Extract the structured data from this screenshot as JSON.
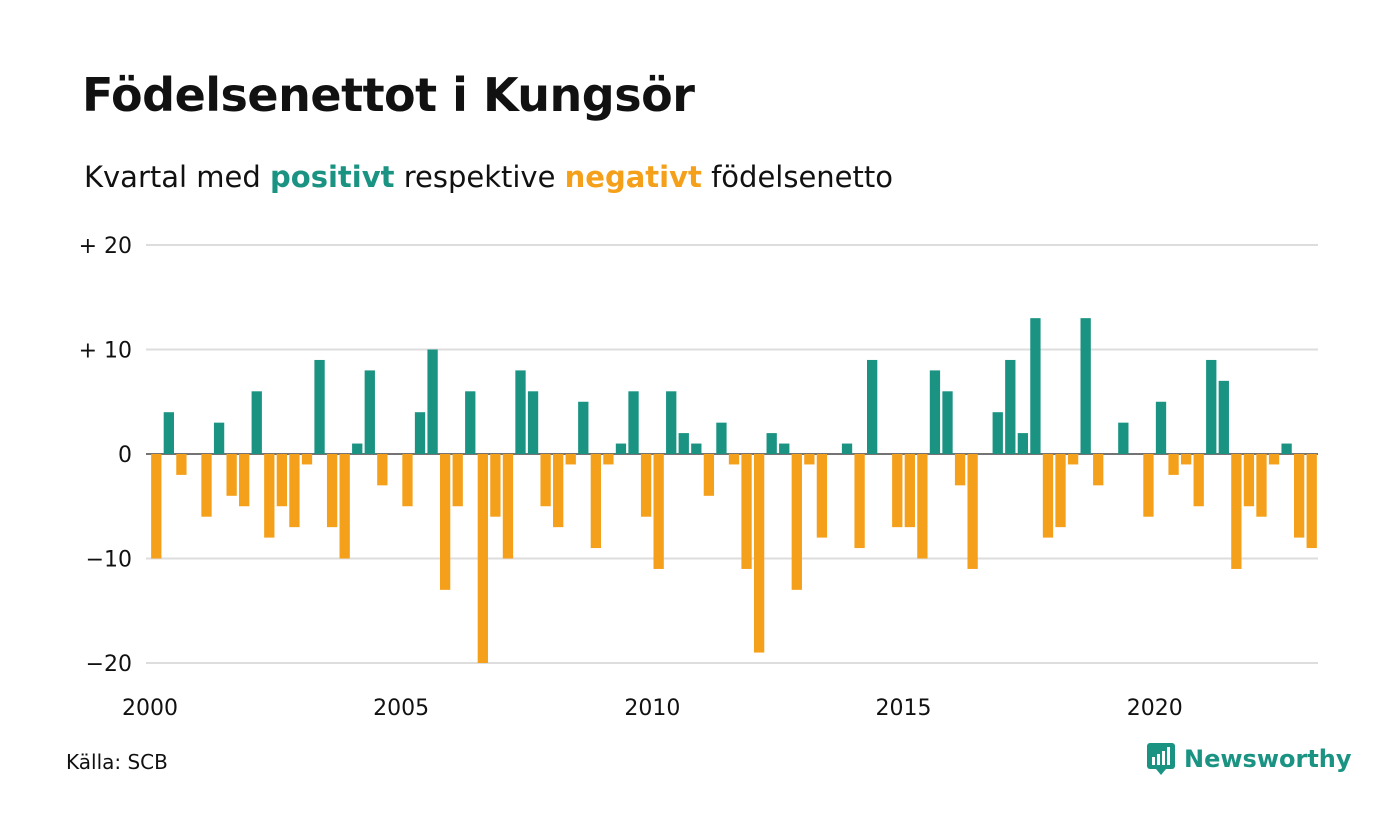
{
  "header": {
    "title": "Födelsenettot i Kungsör",
    "subtitle_prefix": "Kvartal med ",
    "subtitle_pos": "positivt",
    "subtitle_mid": " respektive ",
    "subtitle_neg": "negativt",
    "subtitle_suffix": " födelsenetto"
  },
  "footer": {
    "source": "Källa: SCB",
    "brand": "Newsworthy"
  },
  "colors": {
    "positive": "#1a9383",
    "negative": "#f5a01a",
    "grid": "#dddddd",
    "zero": "#222222"
  },
  "chart_data": {
    "type": "bar",
    "title": "Födelsenettot i Kungsör",
    "subtitle": "Kvartal med positivt respektive negativt födelsenetto",
    "xlabel": "",
    "ylabel": "",
    "xlim": [
      2000,
      2023.25
    ],
    "ylim": [
      -20,
      20
    ],
    "yticks": [
      {
        "value": 20,
        "label": "+ 20"
      },
      {
        "value": 10,
        "label": "+ 10"
      },
      {
        "value": 0,
        "label": "0"
      },
      {
        "value": -10,
        "label": "−10"
      },
      {
        "value": -20,
        "label": "−20"
      }
    ],
    "xticks": [
      "2000",
      "2005",
      "2010",
      "2015",
      "2020"
    ],
    "start_year": 2000,
    "periods_per_year": 4,
    "values": [
      -10,
      4,
      -2,
      0,
      -6,
      3,
      -4,
      -5,
      6,
      -8,
      -5,
      -7,
      -1,
      9,
      -7,
      -10,
      1,
      8,
      -3,
      0,
      -5,
      4,
      10,
      -13,
      -5,
      6,
      -20,
      -6,
      -10,
      8,
      6,
      -5,
      -7,
      -1,
      5,
      -9,
      -1,
      1,
      6,
      -6,
      -11,
      6,
      2,
      1,
      -4,
      3,
      -1,
      -11,
      -19,
      2,
      1,
      -13,
      -1,
      -8,
      0,
      1,
      -9,
      9,
      0,
      -7,
      -7,
      -10,
      8,
      6,
      -3,
      -11,
      0,
      4,
      9,
      2,
      13,
      -8,
      -7,
      -1,
      13,
      -3,
      0,
      3,
      0,
      -6,
      5,
      -2,
      -1,
      -5,
      9,
      7,
      -11,
      -5,
      -6,
      -1,
      1,
      -8,
      -9
    ]
  }
}
